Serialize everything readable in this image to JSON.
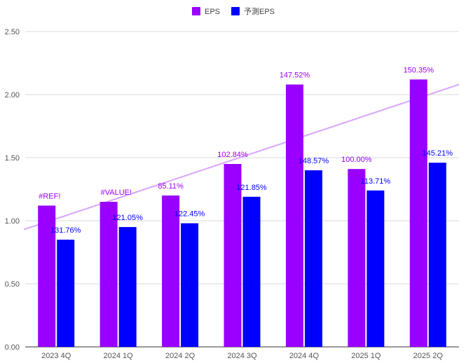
{
  "chart_data": {
    "type": "bar",
    "categories": [
      "2023 4Q",
      "2024 1Q",
      "2024 2Q",
      "2024 3Q",
      "2024 4Q",
      "2025 1Q",
      "2025 2Q"
    ],
    "series": [
      {
        "name": "EPS",
        "color": "#9900ff",
        "values": [
          1.12,
          1.15,
          1.2,
          1.45,
          2.08,
          1.41,
          2.12
        ],
        "labels": [
          "#REF!",
          "#VALUE!",
          "85.11%",
          "102.84%",
          "147.52%",
          "100.00%",
          "150.35%"
        ]
      },
      {
        "name": "予測EPS",
        "color": "#0000ff",
        "values": [
          0.85,
          0.95,
          0.98,
          1.19,
          1.4,
          1.24,
          1.46
        ],
        "labels": [
          "131.76%",
          "121.05%",
          "122.45%",
          "121.85%",
          "148.57%",
          "113.71%",
          "145.21%"
        ]
      }
    ],
    "trendline": {
      "series": "EPS",
      "color": "#d9a5ff",
      "start_value": 0.93,
      "end_value": 2.08
    },
    "yticks": [
      "0.00",
      "0.50",
      "1.00",
      "1.50",
      "2.00",
      "2.50"
    ],
    "ylim": [
      0,
      2.5
    ],
    "grid": true,
    "legend_position": "top-center",
    "title": "",
    "xlabel": "",
    "ylabel": ""
  }
}
